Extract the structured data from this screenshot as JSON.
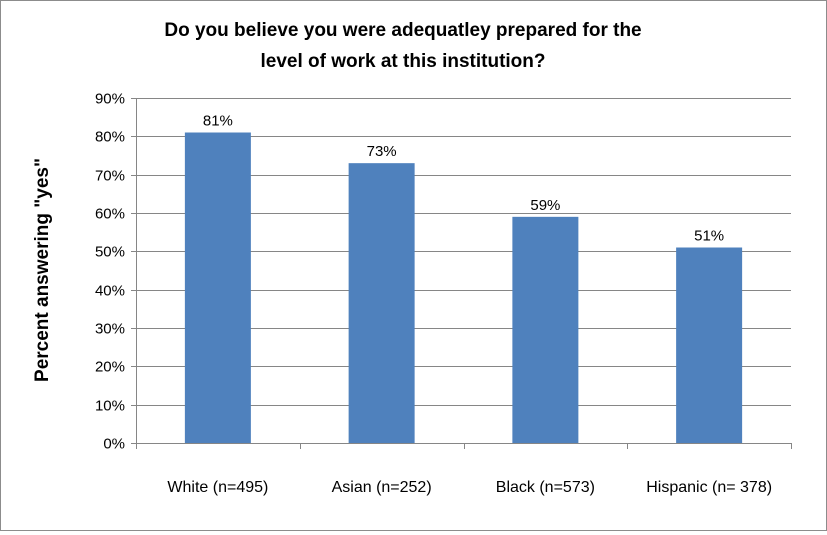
{
  "chart_data": {
    "type": "bar",
    "title_lines": [
      "Do you believe you were adequatley prepared for the",
      "level of work at this institution?"
    ],
    "xlabel": "",
    "ylabel": "Percent answering \"yes\"",
    "categories": [
      "White (n=495)",
      "Asian (n=252)",
      "Black (n=573)",
      "Hispanic (n= 378)"
    ],
    "values": [
      81,
      73,
      59,
      51
    ],
    "data_labels": [
      "81%",
      "73%",
      "59%",
      "51%"
    ],
    "ylim": [
      0,
      90
    ],
    "ytick_values": [
      0,
      10,
      20,
      30,
      40,
      50,
      60,
      70,
      80,
      90
    ],
    "ytick_labels": [
      "0%",
      "10%",
      "20%",
      "30%",
      "40%",
      "50%",
      "60%",
      "70%",
      "80%",
      "90%"
    ],
    "grid": true,
    "legend": "none",
    "bar_color": "#4f81bd",
    "grid_color": "#868686"
  }
}
